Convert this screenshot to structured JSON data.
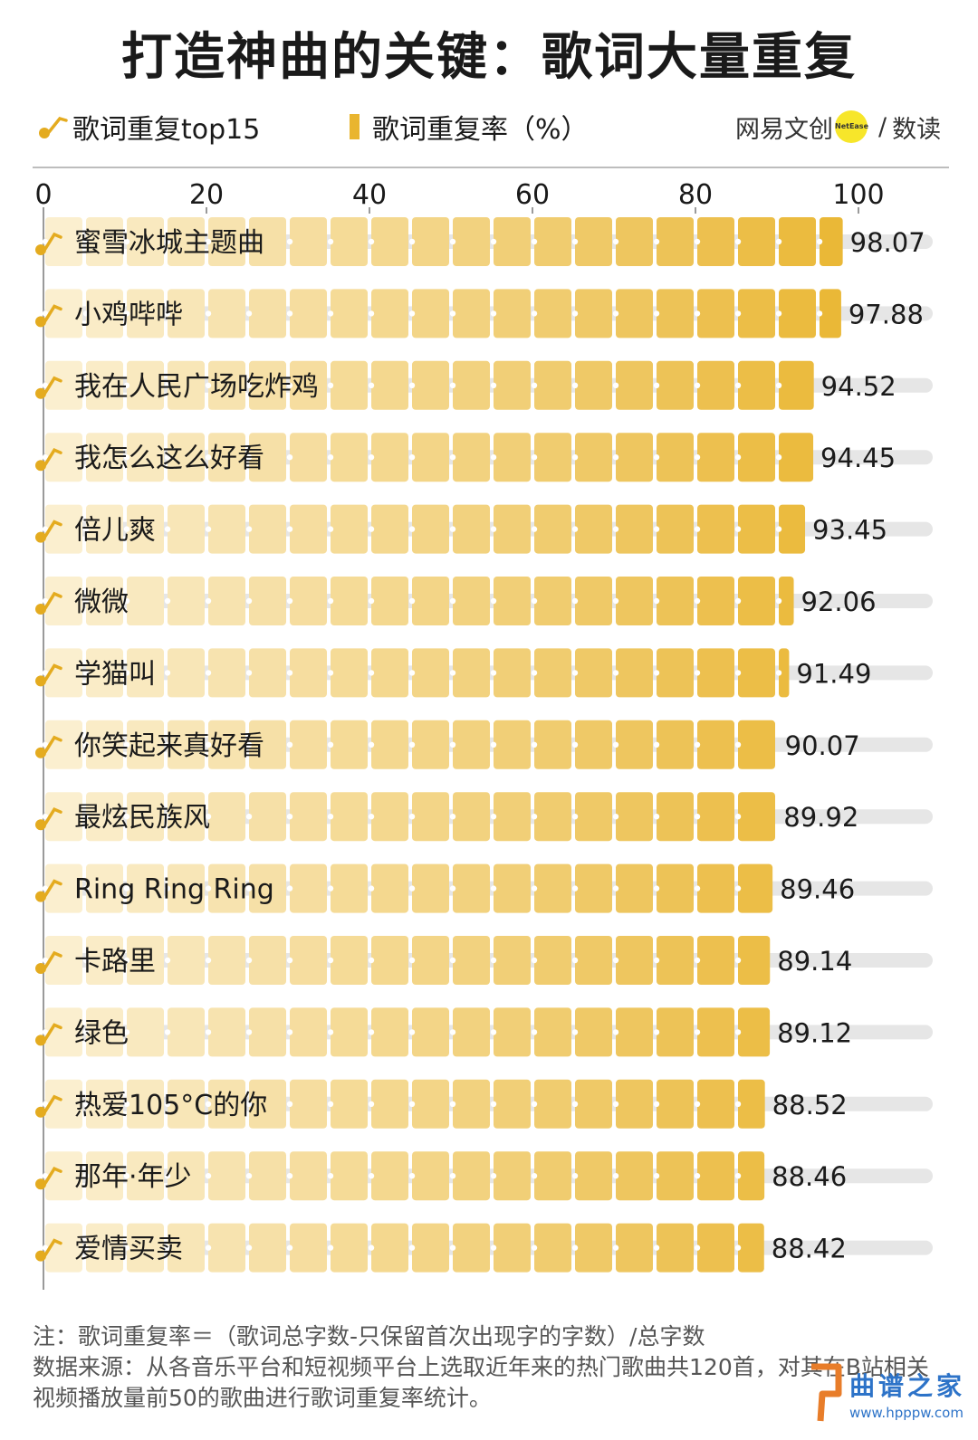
{
  "title": "打造神曲的关键：歌词大量重复",
  "legend": {
    "notes_label": "歌词重复top15",
    "rate_label": "歌词重复率（%）"
  },
  "brand": {
    "name": "网易文创",
    "badge": "NetEase",
    "slash": "/",
    "sub": "数读"
  },
  "colors": {
    "bar_light": "#fbefcf",
    "bar_dark": "#e9b52f",
    "track": "#e6e6e6",
    "note": "#e4ab1f"
  },
  "chart_data": {
    "type": "bar",
    "orientation": "horizontal",
    "title": "打造神曲的关键：歌词大量重复",
    "xlim": [
      0,
      100
    ],
    "xticks": [
      0,
      20,
      40,
      60,
      80,
      100
    ],
    "categories": [
      "蜜雪冰城主题曲",
      "小鸡哔哔",
      "我在人民广场吃炸鸡",
      "我怎么这么好看",
      "倍儿爽",
      "微微",
      "学猫叫",
      "你笑起来真好看",
      "最炫民族风",
      "Ring Ring Ring",
      "卡路里",
      "绿色",
      "热爱105°C的你",
      "那年·年少",
      "爱情买卖"
    ],
    "values": [
      98.07,
      97.88,
      94.52,
      94.45,
      93.45,
      92.06,
      91.49,
      90.07,
      89.92,
      89.46,
      89.14,
      89.12,
      88.52,
      88.46,
      88.42
    ],
    "series": [
      {
        "name": "歌词重复率（%）",
        "values": [
          98.07,
          97.88,
          94.52,
          94.45,
          93.45,
          92.06,
          91.49,
          90.07,
          89.92,
          89.46,
          89.14,
          89.12,
          88.52,
          88.46,
          88.42
        ]
      }
    ]
  },
  "footer": {
    "note": "注：歌词重复率＝（歌词总字数-只保留首次出现字的字数）/总字数",
    "source": "数据来源：从各音乐平台和短视频平台上选取近年来的热门歌曲共120首，对其在B站相关视频播放量前50的歌曲进行歌词重复率统计。"
  },
  "watermark": {
    "text": "曲谱之家",
    "url": "www.hpppw.com"
  }
}
